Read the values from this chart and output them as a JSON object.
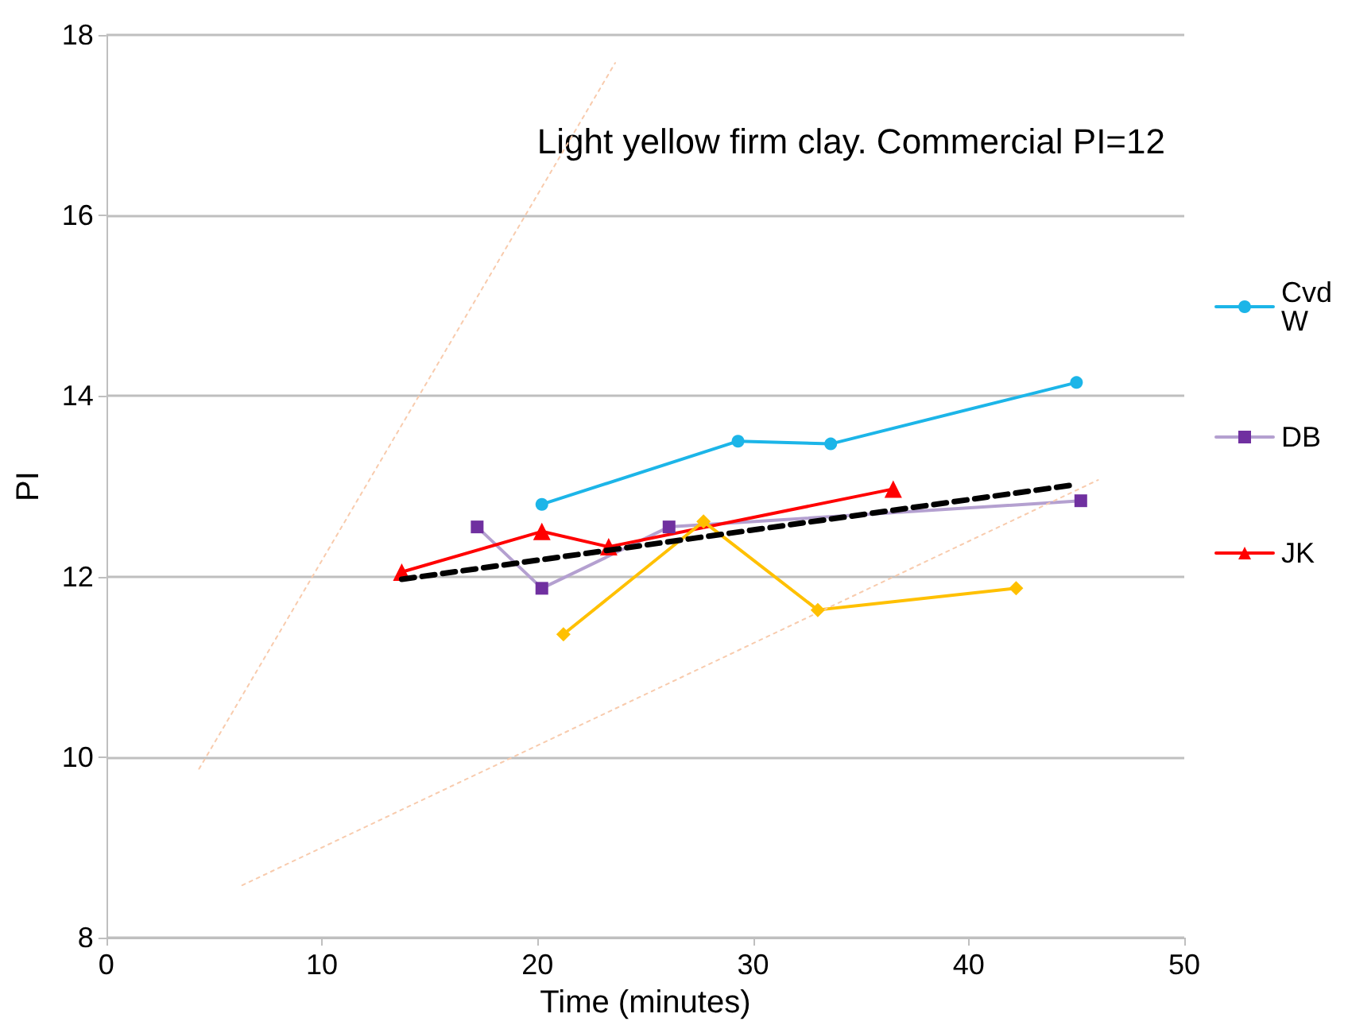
{
  "chart_data": {
    "type": "line",
    "xlabel": "Time (minutes)",
    "ylabel": "PI",
    "annotations": [
      "Light yellow firm clay. Commercial PI=12"
    ],
    "xlim": [
      0,
      50
    ],
    "xticks": [
      0,
      10,
      20,
      30,
      40,
      50
    ],
    "ylim": [
      8,
      18
    ],
    "yticks": [
      8,
      10,
      12,
      14,
      16,
      18
    ],
    "grid": "y",
    "legend": "right",
    "line_style": "solid",
    "series": [
      {
        "name": "Cvd W",
        "color": "#1cb5e8",
        "marker": "circle",
        "x": [
          20.2,
          29.3,
          33.6,
          45
        ],
        "values": [
          12.8,
          13.5,
          13.47,
          14.15
        ]
      },
      {
        "name": "DB",
        "color": "#b4a0d0",
        "marker": "square",
        "x": [
          17.2,
          20.2,
          26.1,
          45.2
        ],
        "values": [
          12.55,
          11.87,
          12.55,
          12.84
        ]
      },
      {
        "name": "JK",
        "color": "#ff0000",
        "marker": "triangle",
        "x": [
          13.7,
          20.2,
          23.3,
          36.5
        ],
        "values": [
          12.05,
          12.5,
          12.33,
          12.97
        ]
      },
      {
        "color": "#ffc000",
        "marker": "diamond",
        "x": [
          21.2,
          27.7,
          33.0,
          42.2
        ],
        "values": [
          11.36,
          12.61,
          11.63,
          11.87
        ]
      },
      {
        "color": "#000000",
        "marker": "none",
        "line_style": "dashed",
        "x": [
          13.7,
          45
        ],
        "values": [
          11.97,
          13.02
        ]
      },
      {
        "color": "#f8cbad",
        "marker": "none",
        "line_style": "dotted",
        "x": [
          4.3,
          23.6
        ],
        "values": [
          9.87,
          17.69
        ]
      },
      {
        "color": "#f8cbad",
        "marker": "none",
        "line_style": "dotted",
        "x": [
          6.3,
          46
        ],
        "values": [
          8.58,
          13.07
        ]
      }
    ]
  }
}
